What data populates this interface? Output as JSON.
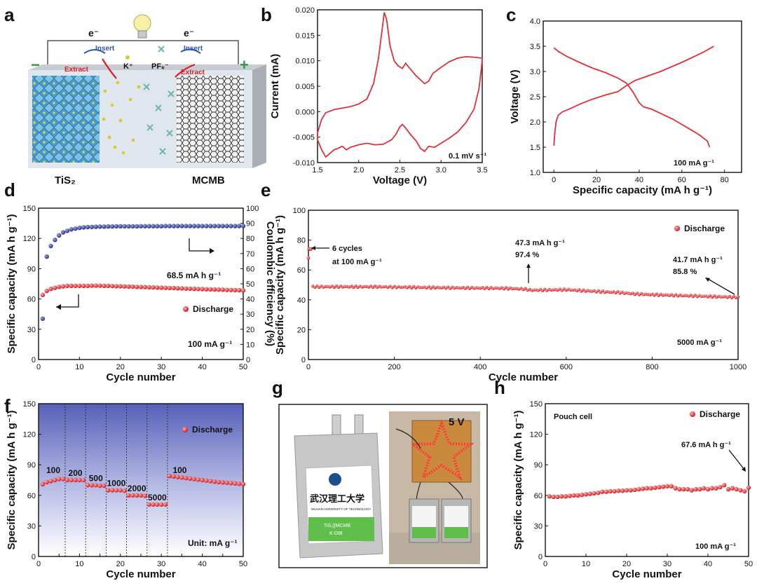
{
  "colors": {
    "red": "#e8262b",
    "red_line": "#e0303a",
    "blue": "#2f3b8f",
    "axis": "#111111",
    "pouch_frame": "#222222"
  },
  "panels": {
    "a": {
      "letter": "a",
      "electrons_left": "e⁻",
      "electrons_right": "e⁻",
      "insert_left": "Insert",
      "insert_right": "Insert",
      "extract_left": "Extract",
      "extract_right": "Extract",
      "cation": "K⁺",
      "anion": "PF₆⁻",
      "minus": "−",
      "plus": "+",
      "anode": "TiS₂",
      "cathode": "MCMB"
    },
    "g": {
      "letter": "g",
      "voltage": "5 V",
      "pouch_label_line1": "TiS₂||MCMB",
      "pouch_label_line2": "K-DIB",
      "university_cn": "武汉理工大学",
      "university_en": "WUHAN UNIVERSITY OF TECHNOLOGY"
    }
  },
  "chart_data": [
    {
      "id": "b",
      "letter": "b",
      "type": "line",
      "title": "",
      "xlabel": "Voltage (V)",
      "ylabel": "Current (mA)",
      "xlim": [
        1.5,
        3.5
      ],
      "ylim": [
        -0.01,
        0.02
      ],
      "xticks": [
        "1.5",
        "2.0",
        "2.5",
        "3.0",
        "3.5"
      ],
      "yticks": [
        "-0.010",
        "-0.005",
        "0.000",
        "0.005",
        "0.010",
        "0.015",
        "0.020"
      ],
      "annotation": "0.1 mV s⁻¹",
      "series": [
        {
          "name": "CV",
          "x": [
            1.5,
            1.55,
            1.6,
            1.7,
            1.8,
            1.9,
            2.0,
            2.1,
            2.18,
            2.24,
            2.28,
            2.31,
            2.34,
            2.38,
            2.43,
            2.48,
            2.53,
            2.57,
            2.62,
            2.7,
            2.8,
            2.85,
            2.9,
            3.0,
            3.1,
            3.2,
            3.3,
            3.4,
            3.5,
            3.49,
            3.46,
            3.4,
            3.3,
            3.2,
            3.1,
            3.0,
            2.92,
            2.85,
            2.8,
            2.75,
            2.7,
            2.63,
            2.57,
            2.53,
            2.5,
            2.45,
            2.4,
            2.3,
            2.2,
            2.1,
            2.0,
            1.9,
            1.85,
            1.8,
            1.75,
            1.7,
            1.6,
            1.55,
            1.5
          ],
          "y": [
            -0.0042,
            -0.0015,
            -0.0002,
            0.0004,
            0.0007,
            0.001,
            0.0015,
            0.0025,
            0.0055,
            0.0105,
            0.0155,
            0.0195,
            0.018,
            0.013,
            0.01,
            0.009,
            0.0085,
            0.0095,
            0.0085,
            0.007,
            0.0055,
            0.006,
            0.0075,
            0.0087,
            0.0098,
            0.0105,
            0.0108,
            0.0107,
            0.0105,
            0.0085,
            0.0045,
            0.0005,
            -0.0022,
            -0.004,
            -0.0052,
            -0.0062,
            -0.007,
            -0.0068,
            -0.0078,
            -0.0072,
            -0.0058,
            -0.0045,
            -0.0032,
            -0.0025,
            -0.003,
            -0.0045,
            -0.0055,
            -0.0064,
            -0.0065,
            -0.0062,
            -0.0065,
            -0.007,
            -0.0075,
            -0.0068,
            -0.0072,
            -0.0075,
            -0.0089,
            -0.0075,
            -0.0055
          ]
        }
      ]
    },
    {
      "id": "c",
      "letter": "c",
      "type": "line",
      "title": "",
      "xlabel": "Specific capacity (mA h g⁻¹)",
      "ylabel": "Voltage (V)",
      "xlim": [
        -5,
        88
      ],
      "ylim": [
        1.0,
        4.0
      ],
      "xticks_values": [
        0,
        20,
        40,
        60,
        80
      ],
      "xticks": [
        "0",
        "20",
        "40",
        "60",
        "80"
      ],
      "yticks": [
        "1.0",
        "1.5",
        "2.0",
        "2.5",
        "3.0",
        "3.5",
        "4.0"
      ],
      "annotation": "100 mA g⁻¹",
      "series": [
        {
          "name": "Charge",
          "x": [
            0,
            0.5,
            1,
            2,
            4,
            8,
            12,
            18,
            24,
            30,
            34,
            38,
            42,
            50,
            60,
            70,
            75
          ],
          "y": [
            1.53,
            1.8,
            2.0,
            2.13,
            2.2,
            2.27,
            2.35,
            2.45,
            2.53,
            2.6,
            2.72,
            2.82,
            2.88,
            3.0,
            3.18,
            3.38,
            3.5
          ]
        },
        {
          "name": "Discharge",
          "x": [
            0,
            2,
            6,
            12,
            18,
            24,
            30,
            34,
            37,
            40,
            42,
            46,
            50,
            56,
            62,
            68,
            72,
            73
          ],
          "y": [
            3.47,
            3.4,
            3.3,
            3.18,
            3.07,
            2.98,
            2.87,
            2.77,
            2.6,
            2.38,
            2.3,
            2.25,
            2.17,
            2.05,
            1.9,
            1.75,
            1.62,
            1.5
          ]
        }
      ]
    },
    {
      "id": "d",
      "letter": "d",
      "type": "scatter",
      "title": "",
      "xlabel": "Cycle number",
      "ylabel": "Specific capacity (mA h g⁻¹)",
      "y2label": "Coulombic efficiency (%)",
      "xlim": [
        0,
        50
      ],
      "ylim": [
        0,
        150
      ],
      "y2lim": [
        0,
        100
      ],
      "xticks": [
        "0",
        "10",
        "20",
        "30",
        "40",
        "50"
      ],
      "yticks": [
        "0",
        "30",
        "60",
        "90",
        "120",
        "150"
      ],
      "y2ticks": [
        "0",
        "10",
        "20",
        "30",
        "40",
        "50",
        "60",
        "70",
        "80",
        "90",
        "100"
      ],
      "legend": "Discharge",
      "annotations": [
        "68.5 mA h g⁻¹",
        "100 mA g⁻¹"
      ],
      "series": [
        {
          "name": "Discharge",
          "axis": "left",
          "x": [
            1,
            2,
            3,
            4,
            5,
            6,
            7,
            8,
            9,
            10,
            11,
            12,
            13,
            14,
            15,
            16,
            17,
            18,
            19,
            20,
            21,
            22,
            23,
            24,
            25,
            26,
            27,
            28,
            29,
            30,
            31,
            32,
            33,
            34,
            35,
            36,
            37,
            38,
            39,
            40,
            41,
            42,
            43,
            44,
            45,
            46,
            47,
            48,
            49,
            50
          ],
          "y": [
            64,
            68,
            70,
            71,
            72,
            72.5,
            73,
            73,
            73,
            73,
            73,
            73,
            73.2,
            73.2,
            73.2,
            73,
            73,
            72.8,
            72.7,
            72.6,
            72.5,
            72.3,
            72.2,
            72,
            71.9,
            71.8,
            71.6,
            71.5,
            71.3,
            71.2,
            71,
            70.9,
            70.8,
            70.6,
            70.5,
            70.3,
            70.2,
            70,
            69.9,
            69.8,
            69.6,
            69.5,
            69.4,
            69.3,
            69.2,
            69,
            68.9,
            68.8,
            68.7,
            68.5
          ]
        },
        {
          "name": "Coulombic efficiency",
          "axis": "right",
          "x": [
            1,
            2,
            3,
            4,
            5,
            6,
            7,
            8,
            9,
            10,
            11,
            12,
            13,
            14,
            15,
            16,
            17,
            18,
            19,
            20,
            21,
            22,
            23,
            24,
            25,
            26,
            27,
            28,
            29,
            30,
            31,
            32,
            33,
            34,
            35,
            36,
            37,
            38,
            39,
            40,
            41,
            42,
            43,
            44,
            45,
            46,
            47,
            48,
            49,
            50
          ],
          "y": [
            27,
            68,
            75,
            79,
            82,
            84,
            85,
            86,
            86.5,
            87,
            87.3,
            87.5,
            87.6,
            87.7,
            87.8,
            87.8,
            87.9,
            87.9,
            88,
            88,
            88,
            88,
            88,
            88,
            88.1,
            88.1,
            88.1,
            88.1,
            88.1,
            88.1,
            88.2,
            88.2,
            88.2,
            88.2,
            88.2,
            88.2,
            88.2,
            88.2,
            88.2,
            88.2,
            88.2,
            88.2,
            88.2,
            88.2,
            88.2,
            88.2,
            88.2,
            88.2,
            88.2,
            88.2
          ]
        }
      ]
    },
    {
      "id": "e",
      "letter": "e",
      "type": "scatter",
      "title": "",
      "xlabel": "Cycle number",
      "ylabel": "Specific capacity (mA h g⁻¹)",
      "xlim": [
        0,
        1000
      ],
      "ylim": [
        0,
        100
      ],
      "xticks": [
        "0",
        "200",
        "400",
        "600",
        "800",
        "1000"
      ],
      "yticks": [
        "0",
        "20",
        "40",
        "60",
        "80",
        "100"
      ],
      "legend": "Discharge",
      "annotations": [
        "6 cycles",
        "at 100 mA g⁻¹",
        "47.3 mA h g⁻¹",
        "97.4 %",
        "41.7 mA h g⁻¹",
        "85.8 %",
        "5000 mA g⁻¹"
      ],
      "series": [
        {
          "name": "Discharge",
          "x_start": 10,
          "x_step": 5,
          "anchors_x": [
            0,
            1,
            2,
            3,
            4,
            5,
            6,
            10,
            150,
            300,
            450,
            500,
            520,
            600,
            700,
            720,
            760,
            800,
            900,
            1000
          ],
          "anchors_y": [
            68,
            74,
            74,
            74,
            74,
            74,
            74,
            48.8,
            48.8,
            48.2,
            47.8,
            47.3,
            46.5,
            46.8,
            45.2,
            45,
            44,
            43.5,
            42.6,
            41.7
          ]
        }
      ]
    },
    {
      "id": "f",
      "letter": "f",
      "type": "scatter",
      "title": "",
      "xlabel": "Cycle number",
      "ylabel": "Specific capacity (mA h g⁻¹)",
      "xlim": [
        0,
        50
      ],
      "ylim": [
        0,
        150
      ],
      "xticks": [
        "0",
        "5",
        "10",
        "15",
        "20",
        "25",
        "30",
        "35",
        "40",
        "45",
        "50"
      ],
      "yticks": [
        "0",
        "30",
        "60",
        "90",
        "120",
        "150"
      ],
      "legend": "Discharge",
      "unit_label": "Unit: mA g⁻¹",
      "rate_boundaries": [
        6.5,
        11.5,
        16.5,
        21.5,
        26.5,
        31.5
      ],
      "rate_labels": [
        {
          "text": "100",
          "x": 3.6,
          "y": 82
        },
        {
          "text": "200",
          "x": 9,
          "y": 79
        },
        {
          "text": "500",
          "x": 14,
          "y": 74
        },
        {
          "text": "1000",
          "x": 19,
          "y": 69
        },
        {
          "text": "2000",
          "x": 24,
          "y": 64
        },
        {
          "text": "5000",
          "x": 29,
          "y": 55
        },
        {
          "text": "100",
          "x": 34.5,
          "y": 82
        }
      ],
      "series": [
        {
          "name": "Discharge",
          "x": [
            1,
            2,
            3,
            4,
            5,
            6,
            7,
            8,
            9,
            10,
            11,
            12,
            13,
            14,
            15,
            16,
            17,
            18,
            19,
            20,
            21,
            22,
            23,
            24,
            25,
            26,
            27,
            28,
            29,
            30,
            31,
            32,
            33,
            34,
            35,
            36,
            37,
            38,
            39,
            40,
            41,
            42,
            43,
            44,
            45,
            46,
            47,
            48,
            49,
            50
          ],
          "y": [
            71,
            73,
            74,
            75,
            76,
            76,
            75,
            75,
            75,
            75,
            75,
            70,
            70,
            70,
            69.5,
            69.5,
            65,
            65,
            65,
            65,
            64.5,
            60,
            60,
            60,
            60,
            59.5,
            51,
            51,
            51,
            51,
            51,
            79,
            78.5,
            78,
            77.5,
            77,
            76.5,
            76,
            75.5,
            75,
            74.5,
            74,
            73.5,
            73,
            72.7,
            72.4,
            72,
            71.7,
            71.4,
            71
          ]
        }
      ]
    },
    {
      "id": "h",
      "letter": "h",
      "type": "scatter",
      "title": "",
      "xlabel": "Cycle number",
      "ylabel": "Specific capacity (mA h g⁻¹)",
      "xlim": [
        0,
        50
      ],
      "ylim": [
        0,
        150
      ],
      "xticks": [
        "0",
        "10",
        "20",
        "30",
        "40",
        "50"
      ],
      "yticks": [
        "0",
        "30",
        "60",
        "90",
        "120",
        "150"
      ],
      "legend": "Discharge",
      "annotations": [
        "Pouch cell",
        "67.6 mA h g⁻¹",
        "100 mA g⁻¹"
      ],
      "series": [
        {
          "name": "Discharge",
          "x": [
            1,
            2,
            3,
            4,
            5,
            6,
            7,
            8,
            9,
            10,
            11,
            12,
            13,
            14,
            15,
            16,
            17,
            18,
            19,
            20,
            21,
            22,
            23,
            24,
            25,
            26,
            27,
            28,
            29,
            30,
            31,
            32,
            33,
            34,
            35,
            36,
            37,
            38,
            39,
            40,
            41,
            42,
            43,
            44,
            45,
            46,
            47,
            48,
            49,
            50
          ],
          "y": [
            59,
            58.5,
            58.5,
            59,
            59,
            59.5,
            60,
            60,
            60.5,
            61,
            61.5,
            62,
            62.5,
            63.5,
            63.5,
            64,
            64,
            64.5,
            64.5,
            65,
            65,
            65.5,
            66,
            66.5,
            67,
            67,
            67.5,
            68,
            68.5,
            69,
            69,
            67,
            66,
            66,
            66,
            65,
            66,
            66,
            67,
            66,
            67,
            67,
            68,
            70,
            66,
            67,
            66,
            65,
            64,
            67.6
          ]
        }
      ]
    }
  ]
}
